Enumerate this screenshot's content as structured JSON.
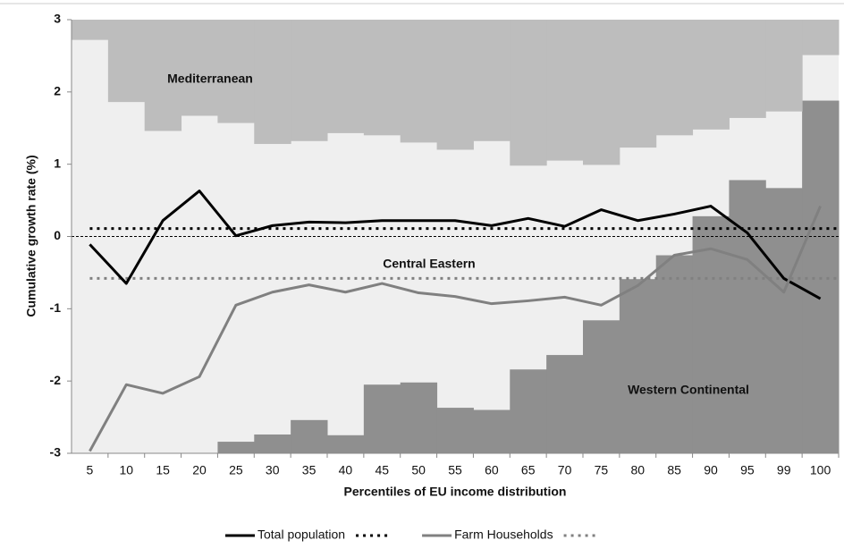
{
  "chart_data": {
    "type": "line",
    "y_label": "Cumulative growth rate (%)",
    "x_label": "Percentiles of EU income distribution",
    "categories": [
      "5",
      "10",
      "15",
      "20",
      "25",
      "30",
      "35",
      "40",
      "45",
      "50",
      "55",
      "60",
      "65",
      "70",
      "75",
      "80",
      "85",
      "90",
      "95",
      "99",
      "100"
    ],
    "ylim": [
      -3,
      3
    ],
    "yticks": [
      -3,
      -2,
      -1,
      0,
      1,
      2,
      3
    ],
    "background": "#efefef",
    "areas": [
      {
        "label": "Western Continental",
        "fill": "below",
        "color": "#8f8f8f",
        "values": [
          -3,
          -3,
          -3,
          -3,
          -2.84,
          -2.74,
          -2.54,
          -2.75,
          -2.05,
          -2.02,
          -2.37,
          -2.4,
          -1.84,
          -1.64,
          -1.16,
          -0.59,
          -0.26,
          0.28,
          0.78,
          0.67,
          1.88
        ]
      },
      {
        "label": "Central Eastern"
      },
      {
        "label": "Mediterranean",
        "fill": "above",
        "color": "#bdbdbd",
        "values": [
          2.72,
          1.86,
          1.46,
          1.67,
          1.57,
          1.28,
          1.32,
          1.43,
          1.4,
          1.3,
          1.2,
          1.32,
          0.98,
          1.05,
          0.99,
          1.23,
          1.4,
          1.48,
          1.64,
          1.73,
          2.51
        ]
      }
    ],
    "series": [
      {
        "name": "Total population",
        "color": "#000000",
        "mean": 0.11,
        "values": [
          -0.11,
          -0.65,
          0.22,
          0.63,
          0.01,
          0.15,
          0.2,
          0.19,
          0.22,
          0.22,
          0.22,
          0.15,
          0.25,
          0.14,
          0.37,
          0.22,
          0.31,
          0.42,
          0.05,
          -0.58,
          -0.86
        ]
      },
      {
        "name": "Farm Households",
        "color": "#808080",
        "mean": -0.58,
        "values": [
          -2.97,
          -2.05,
          -2.17,
          -1.94,
          -0.95,
          -0.77,
          -0.67,
          -0.77,
          -0.65,
          -0.78,
          -0.83,
          -0.93,
          -0.89,
          -0.84,
          -0.95,
          -0.68,
          -0.26,
          -0.17,
          -0.32,
          -0.77,
          0.42
        ]
      }
    ]
  }
}
